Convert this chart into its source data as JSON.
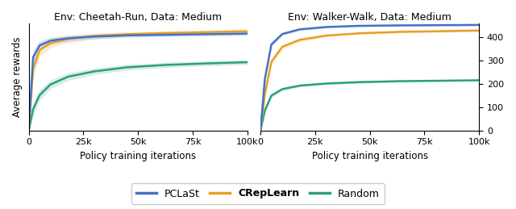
{
  "title_left": "Env: Cheetah-Run, Data: Medium",
  "title_right": "Env: Walker-Walk, Data: Medium",
  "xlabel": "Policy training iterations",
  "ylabel": "Average rewards",
  "colors": {
    "pclast": "#4472C4",
    "creplearn": "#E8A020",
    "random": "#2CA07A"
  },
  "alpha_fill": 0.18,
  "x_pts": [
    0,
    2000,
    5000,
    10000,
    18000,
    30000,
    45000,
    63000,
    82000,
    100000
  ],
  "cheetah": {
    "pclast": {
      "mean": [
        0,
        0.62,
        0.72,
        0.76,
        0.78,
        0.795,
        0.805,
        0.81,
        0.815,
        0.82
      ],
      "std": [
        0,
        0.06,
        0.04,
        0.03,
        0.025,
        0.02,
        0.018,
        0.016,
        0.016,
        0.018
      ]
    },
    "creplearn": {
      "mean": [
        0,
        0.52,
        0.68,
        0.74,
        0.775,
        0.8,
        0.815,
        0.825,
        0.832,
        0.84
      ],
      "std": [
        0,
        0.08,
        0.055,
        0.04,
        0.032,
        0.025,
        0.02,
        0.018,
        0.018,
        0.022
      ]
    },
    "random": {
      "mean": [
        0,
        0.18,
        0.3,
        0.39,
        0.455,
        0.5,
        0.535,
        0.555,
        0.568,
        0.578
      ],
      "std": [
        0,
        0.055,
        0.045,
        0.038,
        0.032,
        0.027,
        0.024,
        0.022,
        0.02,
        0.02
      ]
    }
  },
  "walker": {
    "pclast": {
      "mean": [
        0,
        220,
        370,
        415,
        435,
        445,
        450,
        452,
        453,
        454
      ],
      "std": [
        0,
        18,
        10,
        7,
        5,
        4,
        3,
        3,
        3,
        3
      ]
    },
    "creplearn": {
      "mean": [
        0,
        155,
        295,
        360,
        390,
        408,
        418,
        424,
        427,
        430
      ],
      "std": [
        0,
        16,
        13,
        10,
        8,
        6,
        5,
        5,
        5,
        5
      ]
    },
    "random": {
      "mean": [
        0,
        85,
        150,
        178,
        193,
        202,
        208,
        212,
        214,
        216
      ],
      "std": [
        0,
        11,
        9,
        7,
        6,
        5,
        5,
        4,
        4,
        4
      ]
    }
  },
  "walker_ylim": [
    0,
    460
  ],
  "walker_yticks": [
    0,
    100,
    200,
    300,
    400
  ],
  "x_ticks": [
    0,
    25000,
    50000,
    75000,
    100000
  ],
  "x_tick_labels": [
    "0",
    "25k",
    "50k",
    "75k",
    "100k"
  ],
  "figsize": [
    6.4,
    2.59
  ],
  "dpi": 100
}
